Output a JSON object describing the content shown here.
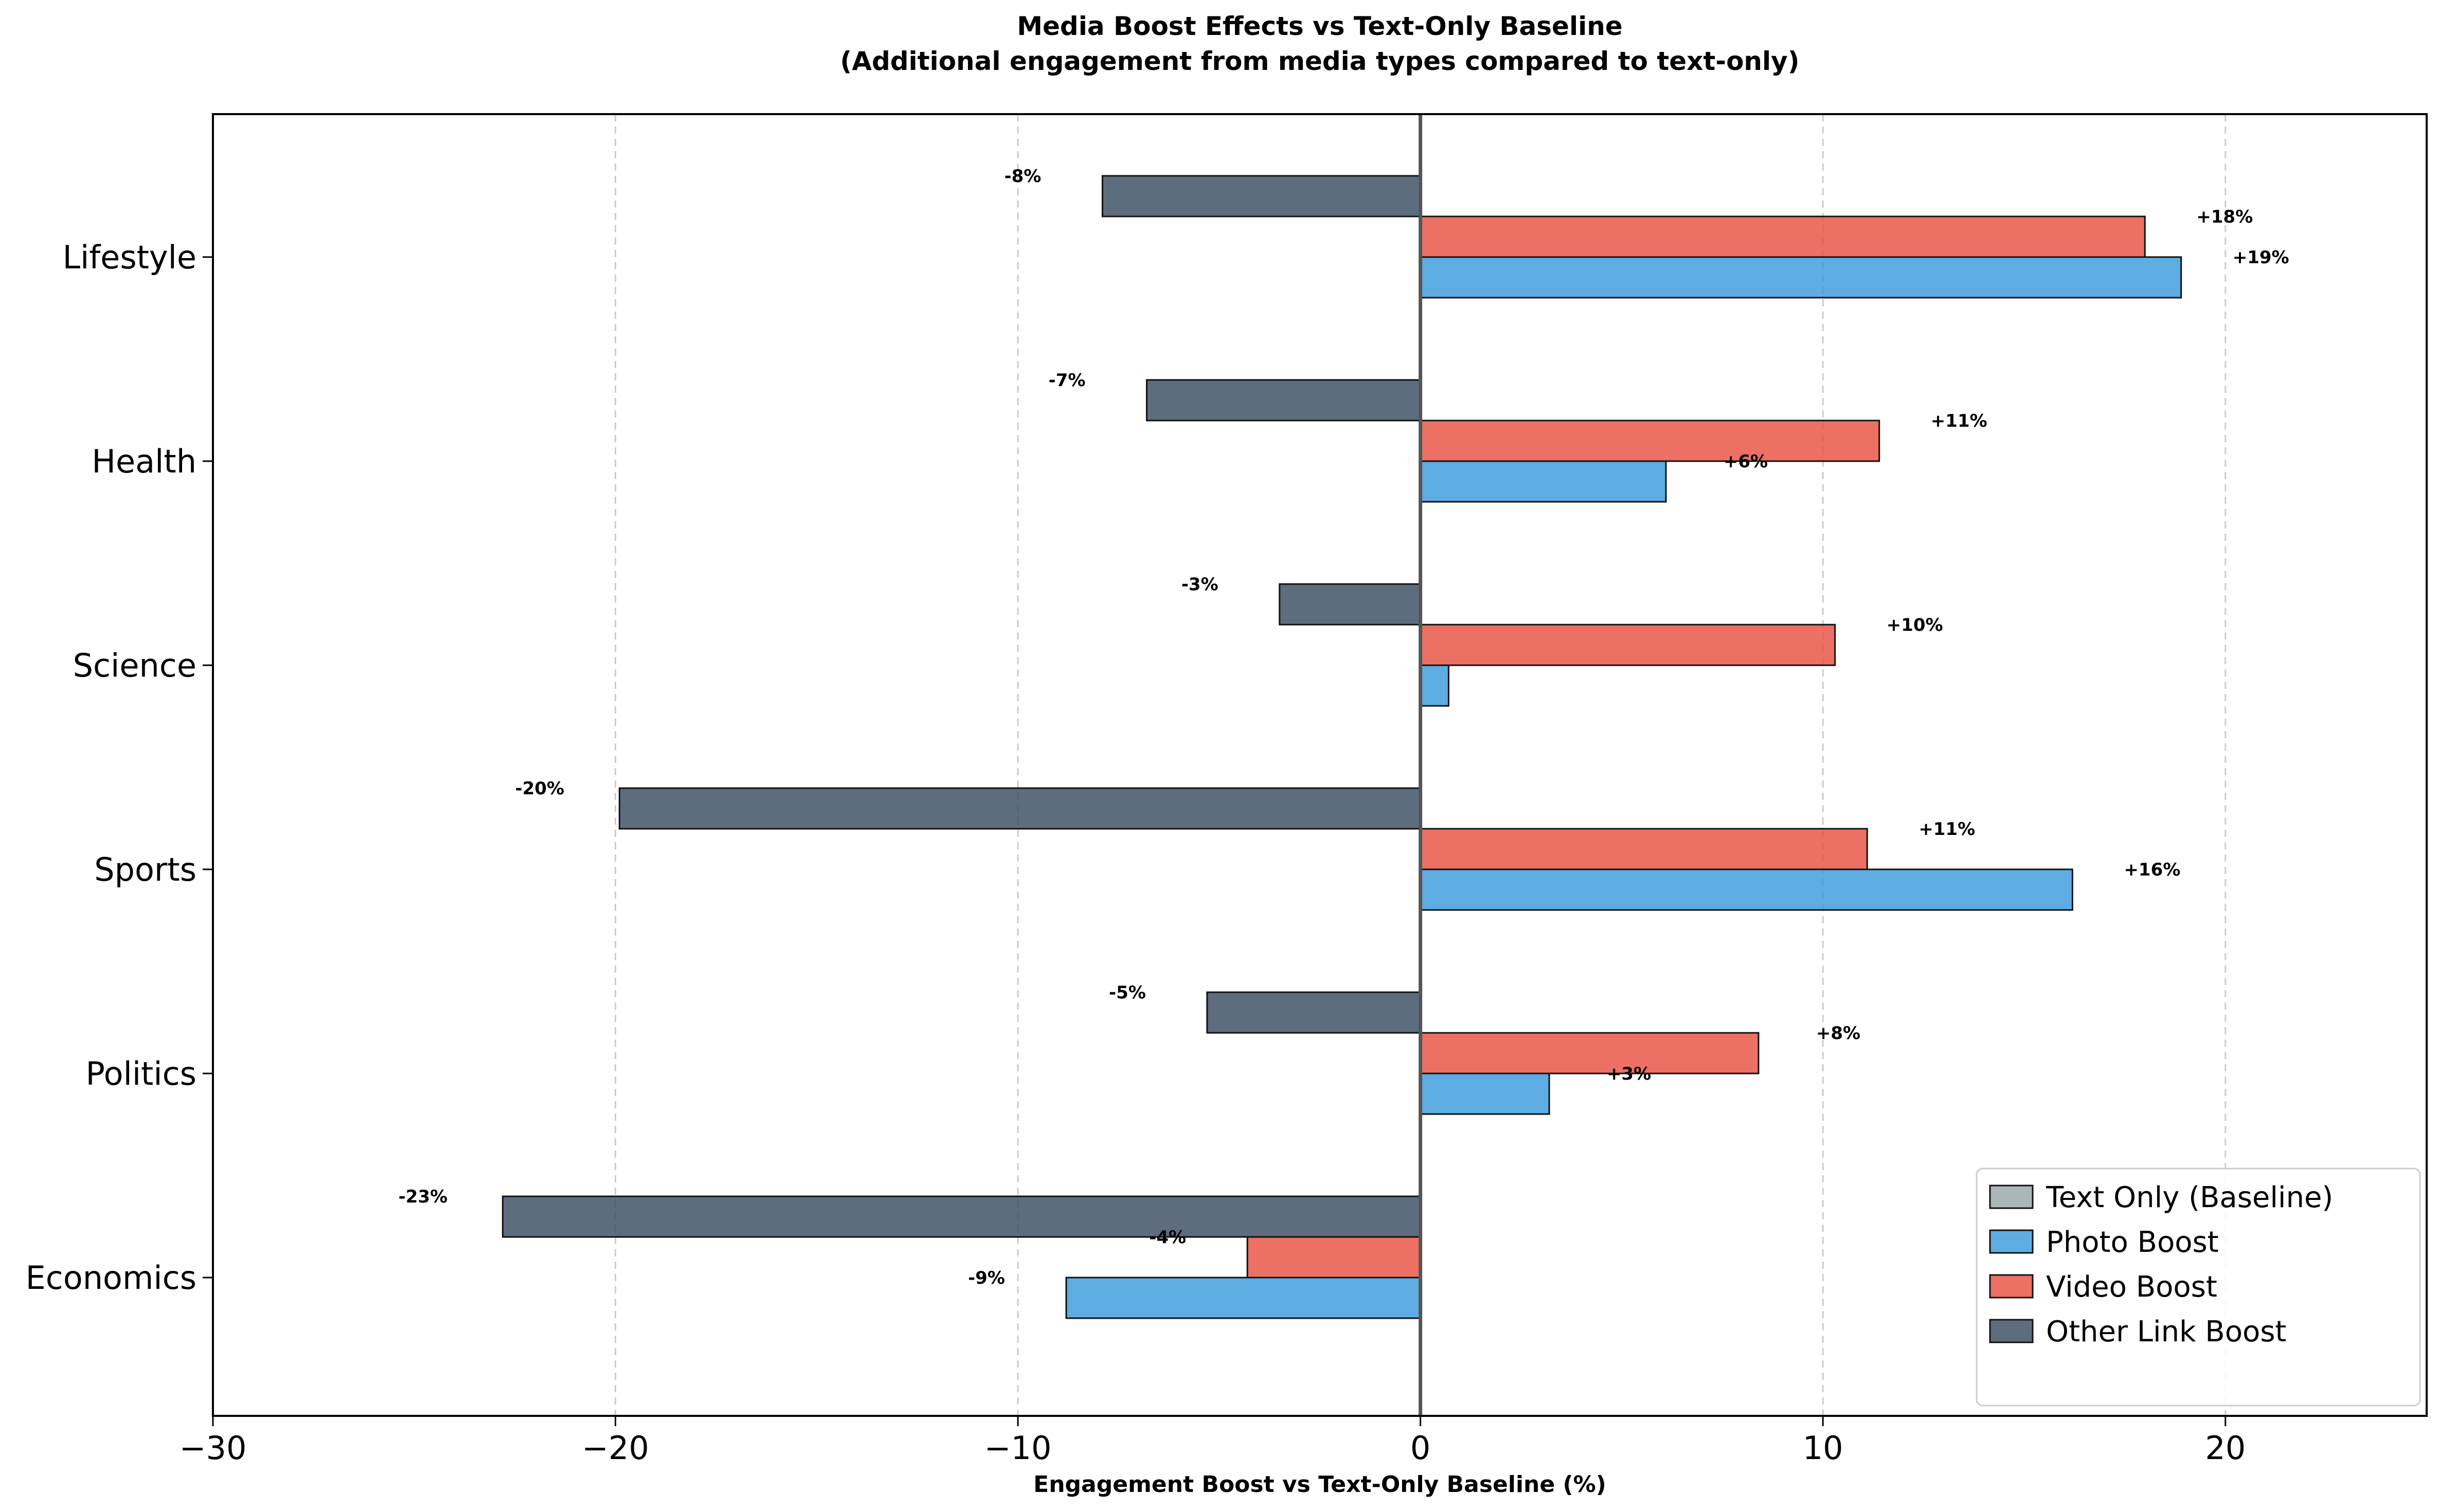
{
  "chart_data": {
    "type": "bar",
    "orientation": "horizontal",
    "title": "Media Boost Effects vs Text-Only Baseline",
    "subtitle": "(Additional engagement from media types compared to text-only)",
    "xlabel": "Engagement Boost vs Text-Only Baseline (%)",
    "ylabel": "",
    "xlim": [
      -30,
      25
    ],
    "xticks": [
      -30,
      -20,
      -10,
      0,
      10,
      20
    ],
    "xtick_labels": [
      "−30",
      "−20",
      "−10",
      "0",
      "10",
      "20"
    ],
    "grid": "vertical dashed",
    "legend_position": "lower-right",
    "categories": [
      "Lifestyle",
      "Health",
      "Science",
      "Sports",
      "Politics",
      "Economics"
    ],
    "series": [
      {
        "name": "Text Only (Baseline)",
        "color": "#95a5a6",
        "values": [
          0,
          0,
          0,
          0,
          0,
          0
        ],
        "labels": [
          "",
          "",
          "",
          "",
          "",
          ""
        ]
      },
      {
        "name": "Photo Boost",
        "color": "#3498db",
        "values": [
          18.9,
          6.1,
          0.7,
          16.2,
          3.2,
          -8.8
        ],
        "labels": [
          "+19%",
          "+6%",
          "",
          "+16%",
          "+3%",
          "-9%"
        ]
      },
      {
        "name": "Video Boost",
        "color": "#e74c3c",
        "values": [
          18.0,
          11.4,
          10.3,
          11.1,
          8.4,
          -4.3
        ],
        "labels": [
          "+18%",
          "+11%",
          "+10%",
          "+11%",
          "+8%",
          "-4%"
        ]
      },
      {
        "name": "Other Link Boost",
        "color": "#34495e",
        "values": [
          -7.9,
          -6.8,
          -3.5,
          -19.9,
          -5.3,
          -22.8
        ],
        "labels": [
          "-8%",
          "-7%",
          "-3%",
          "-20%",
          "-5%",
          "-23%"
        ]
      }
    ]
  }
}
